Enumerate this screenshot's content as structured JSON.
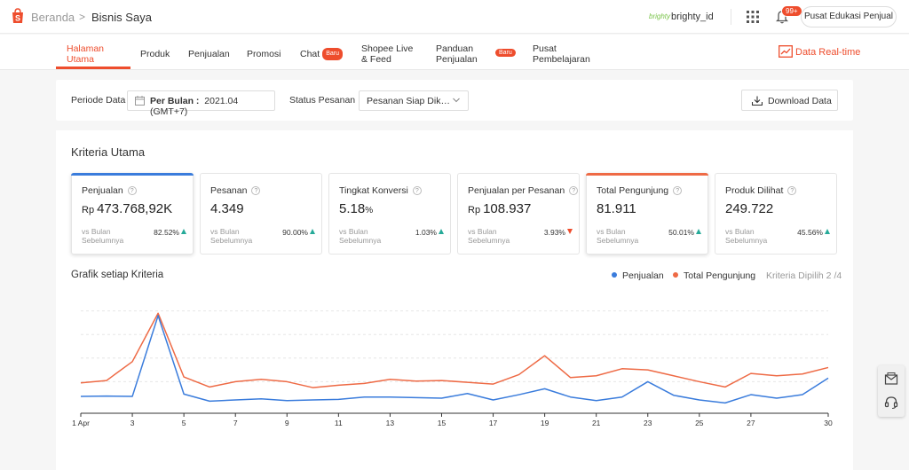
{
  "header": {
    "breadcrumb_home": "Beranda",
    "breadcrumb_sep": ">",
    "breadcrumb_current": "Bisnis Saya",
    "shop_logo_text": "brighty",
    "username": "brighty_id",
    "notification_count": "99+",
    "edu_center_label": "Pusat Edukasi Penjual"
  },
  "nav": {
    "tabs": [
      {
        "label": "Halaman Utama",
        "active": true
      },
      {
        "label": "Produk"
      },
      {
        "label": "Penjualan"
      },
      {
        "label": "Promosi"
      },
      {
        "label": "Chat",
        "badge": "Baru"
      },
      {
        "label": "Shopee Live & Feed"
      },
      {
        "label": "Panduan Penjualan",
        "badge": "Baru"
      },
      {
        "label": "Pusat Pembelajaran"
      }
    ],
    "realtime_label": "Data Real-time"
  },
  "filters": {
    "period_label": "Periode Data",
    "period_mode": "Per Bulan :",
    "period_value": "2021.04 (GMT+7)",
    "status_label": "Status Pesanan",
    "status_value": "Pesanan Siap Dikirim",
    "download_label": "Download Data"
  },
  "main": {
    "section_title": "Kriteria Utama",
    "metrics": [
      {
        "title": "Penjualan",
        "currency": "Rp",
        "value": "473.768,92K",
        "compare": "vs Bulan Sebelumnya",
        "pct": "82.52%",
        "trend": "up",
        "selected": true,
        "accent": "#3a7cdc"
      },
      {
        "title": "Pesanan",
        "value": "4.349",
        "compare": "vs Bulan Sebelumnya",
        "pct": "90.00%",
        "trend": "up"
      },
      {
        "title": "Tingkat Konversi",
        "value": "5.18",
        "unit": "%",
        "compare": "vs Bulan Sebelumnya",
        "pct": "1.03%",
        "trend": "up"
      },
      {
        "title": "Penjualan per Pesanan",
        "currency": "Rp",
        "value": "108.937",
        "compare": "vs Bulan Sebelumnya",
        "pct": "3.93%",
        "trend": "down"
      },
      {
        "title": "Total Pengunjung",
        "value": "81.911",
        "compare": "vs Bulan Sebelumnya",
        "pct": "50.01%",
        "trend": "up",
        "selected": true,
        "accent": "#ee6a45"
      },
      {
        "title": "Produk Dilihat",
        "value": "249.722",
        "compare": "vs Bulan Sebelumnya",
        "pct": "45.56%",
        "trend": "up"
      }
    ],
    "graph_title": "Grafik setiap Kriteria",
    "criteria_selected": "Kriteria Dipilih 2 /4"
  },
  "colors": {
    "accent": "#ee4d2d",
    "series_penjualan": "#3a7cdc",
    "series_pengunjung": "#ee6a45",
    "positive": "#26aa99"
  },
  "chart_data": {
    "type": "line",
    "x": [
      1,
      2,
      3,
      4,
      5,
      6,
      7,
      8,
      9,
      10,
      11,
      12,
      13,
      14,
      15,
      16,
      17,
      18,
      19,
      20,
      21,
      22,
      23,
      24,
      25,
      26,
      27,
      28,
      29,
      30
    ],
    "x_tick_labels": [
      "1 Apr",
      "3",
      "5",
      "7",
      "9",
      "11",
      "13",
      "15",
      "17",
      "19",
      "21",
      "23",
      "25",
      "27",
      "30"
    ],
    "x_tick_values": [
      1,
      3,
      5,
      7,
      9,
      11,
      13,
      15,
      17,
      19,
      21,
      23,
      25,
      27,
      30
    ],
    "y_axis_labels_visible": false,
    "grid": "horizontal dashed",
    "legend_position": "top-right",
    "series": [
      {
        "name": "Penjualan",
        "color": "#3a7cdc",
        "values": [
          13.5,
          13.8,
          13.5,
          82,
          15.5,
          9.5,
          10.5,
          11.5,
          10,
          10.5,
          11,
          13,
          13,
          12.5,
          12,
          16,
          10.5,
          15,
          20,
          13,
          10,
          13,
          26,
          14.5,
          10.5,
          8,
          15,
          12,
          15,
          29
        ]
      },
      {
        "name": "Total Pengunjung",
        "color": "#ee6a45",
        "values": [
          25,
          27,
          43,
          84,
          30,
          21.5,
          26,
          28,
          26,
          21,
          23,
          24.5,
          28,
          26.5,
          27,
          25.5,
          24,
          32,
          48,
          29.5,
          31,
          37,
          36,
          31,
          26,
          21.5,
          33,
          31,
          32.5,
          38
        ]
      }
    ],
    "ylim": [
      0,
      100
    ]
  }
}
